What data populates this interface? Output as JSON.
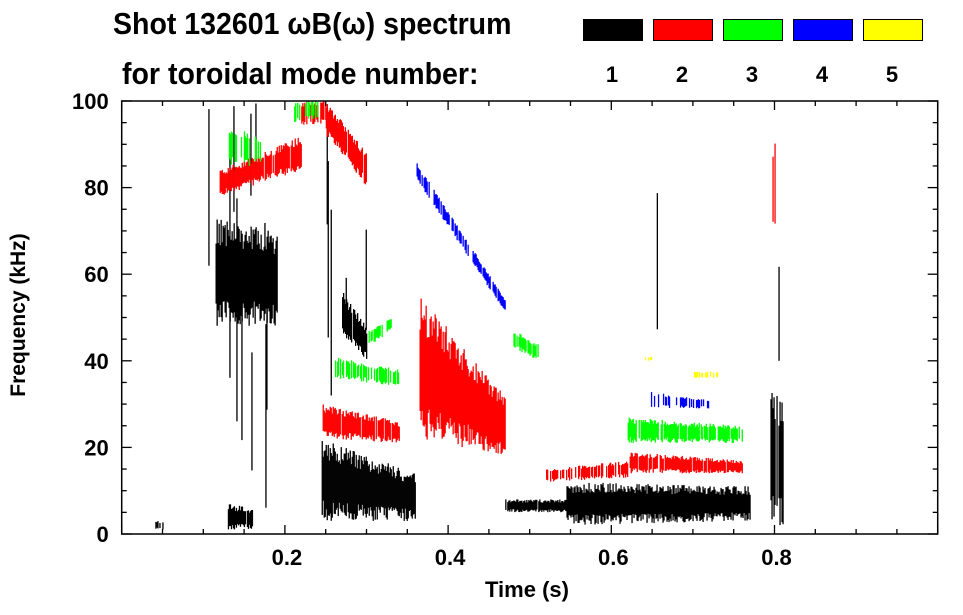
{
  "chart_data": {
    "type": "heatmap",
    "title": "Shot 132601 ωB(ω) spectrum",
    "subtitle": "for toroidal mode number:",
    "xlabel": "Time (s)",
    "ylabel": "Frequency (kHz)",
    "xlim": [
      0,
      1.0
    ],
    "ylim": [
      0,
      100
    ],
    "xticks": [
      {
        "v": 0.2,
        "label": "0.2"
      },
      {
        "v": 0.4,
        "label": "0.4"
      },
      {
        "v": 0.6,
        "label": "0.6"
      },
      {
        "v": 0.8,
        "label": "0.8"
      }
    ],
    "yticks": [
      {
        "v": 0,
        "label": "0"
      },
      {
        "v": 20,
        "label": "20"
      },
      {
        "v": 40,
        "label": "40"
      },
      {
        "v": 60,
        "label": "60"
      },
      {
        "v": 80,
        "label": "80"
      },
      {
        "v": 100,
        "label": "100"
      }
    ],
    "legend": [
      {
        "label": "1",
        "color": "#000000"
      },
      {
        "label": "2",
        "color": "#ff0000"
      },
      {
        "label": "3",
        "color": "#00ff00"
      },
      {
        "label": "4",
        "color": "#0000ff"
      },
      {
        "label": "5",
        "color": "#ffff00"
      }
    ],
    "features": [
      {
        "mode": 1,
        "t": [
          0.115,
          0.19
        ],
        "f0": [
          48,
          73
        ],
        "f1": [
          48,
          70
        ],
        "d": 1.0
      },
      {
        "mode": 1,
        "t": [
          0.1,
          0.19
        ],
        "f0": [
          5,
          98
        ],
        "f1": [
          5,
          100
        ],
        "d": 0.12
      },
      {
        "mode": 1,
        "t": [
          0.13,
          0.16
        ],
        "f0": [
          1,
          7
        ],
        "f1": [
          1,
          6
        ],
        "d": 0.8
      },
      {
        "mode": 1,
        "t": [
          0.04,
          0.05
        ],
        "f0": [
          1,
          3
        ],
        "f1": [
          1,
          3
        ],
        "d": 0.4
      },
      {
        "mode": 1,
        "t": [
          0.245,
          0.36
        ],
        "f0": [
          3,
          22
        ],
        "f1": [
          3,
          14
        ],
        "d": 1.0
      },
      {
        "mode": 1,
        "t": [
          0.27,
          0.3
        ],
        "f0": [
          46,
          56
        ],
        "f1": [
          40,
          48
        ],
        "d": 0.9
      },
      {
        "mode": 1,
        "t": [
          0.245,
          0.32
        ],
        "f0": [
          20,
          100
        ],
        "f1": [
          20,
          80
        ],
        "d": 0.12
      },
      {
        "mode": 1,
        "t": [
          0.47,
          0.55
        ],
        "f0": [
          5,
          8
        ],
        "f1": [
          5,
          8
        ],
        "d": 0.9
      },
      {
        "mode": 1,
        "t": [
          0.545,
          0.77
        ],
        "f0": [
          2,
          12
        ],
        "f1": [
          3,
          11
        ],
        "d": 1.0
      },
      {
        "mode": 1,
        "t": [
          0.625,
          0.69
        ],
        "f0": [
          25,
          100
        ],
        "f1": [
          25,
          100
        ],
        "d": 0.07
      },
      {
        "mode": 1,
        "t": [
          0.795,
          0.81
        ],
        "f0": [
          1,
          35
        ],
        "f1": [
          1,
          30
        ],
        "d": 0.8
      },
      {
        "mode": 1,
        "t": [
          0.795,
          0.805
        ],
        "f0": [
          40,
          98
        ],
        "f1": [
          40,
          98
        ],
        "d": 0.3
      },
      {
        "mode": 2,
        "t": [
          0.12,
          0.22
        ],
        "f0": [
          78,
          84
        ],
        "f1": [
          84,
          92
        ],
        "d": 0.9
      },
      {
        "mode": 2,
        "t": [
          0.22,
          0.25
        ],
        "f0": [
          94,
          100
        ],
        "f1": [
          95,
          100
        ],
        "d": 0.6
      },
      {
        "mode": 2,
        "t": [
          0.25,
          0.3
        ],
        "f0": [
          92,
          100
        ],
        "f1": [
          80,
          88
        ],
        "d": 0.9
      },
      {
        "mode": 2,
        "t": [
          0.245,
          0.34
        ],
        "f0": [
          22,
          30
        ],
        "f1": [
          21,
          26
        ],
        "d": 0.9
      },
      {
        "mode": 2,
        "t": [
          0.365,
          0.47
        ],
        "f0": [
          22,
          55
        ],
        "f1": [
          18,
          32
        ],
        "d": 1.0
      },
      {
        "mode": 2,
        "t": [
          0.52,
          0.62
        ],
        "f0": [
          12,
          15
        ],
        "f1": [
          13,
          17
        ],
        "d": 0.6
      },
      {
        "mode": 2,
        "t": [
          0.62,
          0.76
        ],
        "f0": [
          14,
          19
        ],
        "f1": [
          14,
          17
        ],
        "d": 0.9
      },
      {
        "mode": 2,
        "t": [
          0.795,
          0.805
        ],
        "f0": [
          60,
          98
        ],
        "f1": [
          60,
          98
        ],
        "d": 0.3
      },
      {
        "mode": 3,
        "t": [
          0.13,
          0.17
        ],
        "f0": [
          85,
          95
        ],
        "f1": [
          85,
          92
        ],
        "d": 0.5
      },
      {
        "mode": 3,
        "t": [
          0.21,
          0.24
        ],
        "f0": [
          95,
          100
        ],
        "f1": [
          96,
          100
        ],
        "d": 0.5
      },
      {
        "mode": 3,
        "t": [
          0.26,
          0.34
        ],
        "f0": [
          36,
          41
        ],
        "f1": [
          34,
          38
        ],
        "d": 0.7
      },
      {
        "mode": 3,
        "t": [
          0.3,
          0.33
        ],
        "f0": [
          43,
          47
        ],
        "f1": [
          47,
          50
        ],
        "d": 0.7
      },
      {
        "mode": 3,
        "t": [
          0.48,
          0.51
        ],
        "f0": [
          43,
          47
        ],
        "f1": [
          40,
          44
        ],
        "d": 0.7
      },
      {
        "mode": 3,
        "t": [
          0.62,
          0.76
        ],
        "f0": [
          21,
          27
        ],
        "f1": [
          21,
          25
        ],
        "d": 0.9
      },
      {
        "mode": 4,
        "t": [
          0.36,
          0.47
        ],
        "f0": [
          82,
          86
        ],
        "f1": [
          51,
          54
        ],
        "d": 0.6
      },
      {
        "mode": 4,
        "t": [
          0.64,
          0.72
        ],
        "f0": [
          29,
          33
        ],
        "f1": [
          29,
          31
        ],
        "d": 0.4
      },
      {
        "mode": 5,
        "t": [
          0.7,
          0.73
        ],
        "f0": [
          36,
          37.5
        ],
        "f1": [
          36,
          37.5
        ],
        "d": 0.6
      },
      {
        "mode": 5,
        "t": [
          0.64,
          0.65
        ],
        "f0": [
          40,
          41
        ],
        "f1": [
          40,
          41
        ],
        "d": 0.5
      }
    ]
  }
}
